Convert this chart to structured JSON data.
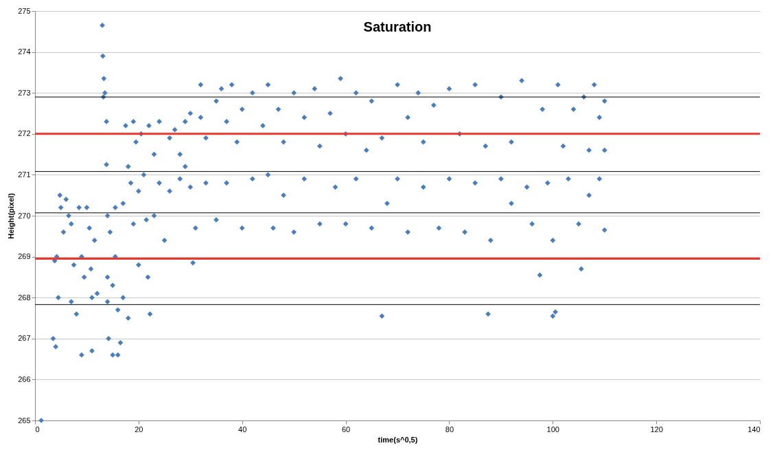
{
  "chart_data": {
    "type": "scatter",
    "title": "Saturation",
    "xlabel": "time(s^0,5)",
    "ylabel": "Height(pixel)",
    "xlim": [
      0,
      140
    ],
    "xticks": [
      0,
      20,
      40,
      60,
      80,
      100,
      120,
      140
    ],
    "ylim": [
      265,
      275
    ],
    "yticks": [
      265,
      266,
      267,
      268,
      269,
      270,
      271,
      272,
      273,
      274,
      275
    ],
    "grid": "y",
    "marker": "diamond",
    "series": [
      {
        "color": "#4a7ebb",
        "x": [
          1.2,
          3.5,
          4,
          3.8,
          4.2,
          4.5,
          4.8,
          5,
          5.5,
          6,
          6.5,
          7,
          7.5,
          7,
          8,
          8.5,
          9,
          9,
          9.5,
          10,
          10.5,
          10.8,
          11,
          11,
          11.5,
          12,
          13,
          13.1,
          13.3,
          13.2,
          13.5,
          13.8,
          13.8,
          14,
          14,
          14,
          14.2,
          14.5,
          15,
          15,
          15.5,
          15.5,
          16,
          16,
          16.5,
          17,
          17,
          17.5,
          18,
          18,
          18.5,
          19,
          19,
          19.5,
          20,
          20,
          20.5,
          21,
          21.5,
          21.8,
          22,
          22.2,
          23,
          23,
          24,
          24,
          25,
          26,
          26,
          27,
          28,
          28,
          29,
          29,
          30,
          30,
          30.5,
          31,
          32,
          32,
          33,
          33,
          35,
          35,
          36,
          37,
          37,
          38,
          39,
          40,
          40,
          42,
          42,
          44,
          45,
          45,
          46,
          47,
          48,
          48,
          50,
          50,
          52,
          52,
          54,
          55,
          55,
          57,
          58,
          59,
          60,
          60,
          62,
          62,
          64,
          65,
          65,
          67,
          67,
          68,
          70,
          70,
          72,
          72,
          74,
          75,
          75,
          77,
          78,
          80,
          80,
          82,
          83,
          85,
          85,
          87,
          87.5,
          88,
          90,
          90,
          92,
          92,
          94,
          95,
          96,
          97.5,
          98,
          99,
          100,
          100.5,
          100,
          101,
          102,
          103,
          104,
          105,
          105.5,
          106,
          107,
          107,
          108,
          109,
          109,
          110,
          110,
          110
        ],
        "values": [
          265.0,
          267.0,
          266.8,
          268.9,
          269.0,
          268.0,
          270.5,
          270.2,
          269.6,
          270.4,
          270.0,
          269.8,
          268.8,
          267.9,
          267.6,
          270.2,
          269.0,
          266.6,
          268.5,
          270.2,
          269.7,
          268.7,
          268.0,
          266.7,
          269.4,
          268.1,
          274.65,
          273.9,
          273.35,
          272.9,
          273.0,
          272.3,
          271.25,
          270.0,
          268.5,
          267.9,
          267.0,
          269.6,
          266.6,
          268.3,
          270.2,
          269.0,
          267.7,
          266.6,
          266.9,
          268.0,
          270.3,
          272.2,
          271.2,
          267.5,
          270.8,
          272.3,
          269.8,
          271.8,
          270.6,
          268.8,
          272.0,
          271.0,
          269.9,
          268.5,
          272.2,
          267.6,
          271.5,
          270.0,
          272.3,
          270.8,
          269.4,
          271.9,
          270.6,
          272.1,
          271.5,
          270.9,
          272.3,
          271.2,
          272.5,
          270.7,
          268.85,
          269.7,
          273.2,
          272.4,
          271.9,
          270.8,
          272.8,
          269.9,
          273.1,
          272.3,
          270.8,
          273.2,
          271.8,
          272.6,
          269.7,
          273.0,
          270.9,
          272.2,
          273.2,
          271.0,
          269.7,
          272.6,
          271.8,
          270.5,
          273.0,
          269.6,
          272.4,
          270.9,
          273.1,
          271.7,
          269.8,
          272.5,
          270.7,
          273.35,
          272.0,
          269.8,
          273.0,
          270.9,
          271.6,
          272.8,
          269.7,
          267.55,
          271.9,
          270.3,
          273.2,
          270.9,
          272.4,
          269.6,
          273.0,
          271.8,
          270.7,
          272.7,
          269.7,
          273.1,
          270.9,
          272.0,
          269.6,
          273.2,
          270.8,
          271.7,
          267.6,
          269.4,
          272.9,
          270.9,
          271.8,
          270.3,
          273.3,
          270.7,
          269.8,
          268.55,
          272.6,
          270.8,
          267.55,
          267.65,
          269.4,
          273.2,
          271.7,
          270.9,
          272.6,
          269.8,
          268.7,
          272.9,
          271.6,
          270.5,
          273.2,
          272.4,
          270.9,
          271.6,
          269.65,
          272.8
        ]
      }
    ],
    "ref_lines": [
      {
        "axis": "y",
        "value": 272.9,
        "color": "#000000"
      },
      {
        "axis": "y",
        "value": 272.0,
        "color": "#e8382f"
      },
      {
        "axis": "y",
        "value": 271.08,
        "color": "#000000"
      },
      {
        "axis": "y",
        "value": 270.07,
        "color": "#000000"
      },
      {
        "axis": "y",
        "value": 268.95,
        "color": "#e8382f"
      },
      {
        "axis": "y",
        "value": 267.83,
        "color": "#000000"
      }
    ]
  }
}
